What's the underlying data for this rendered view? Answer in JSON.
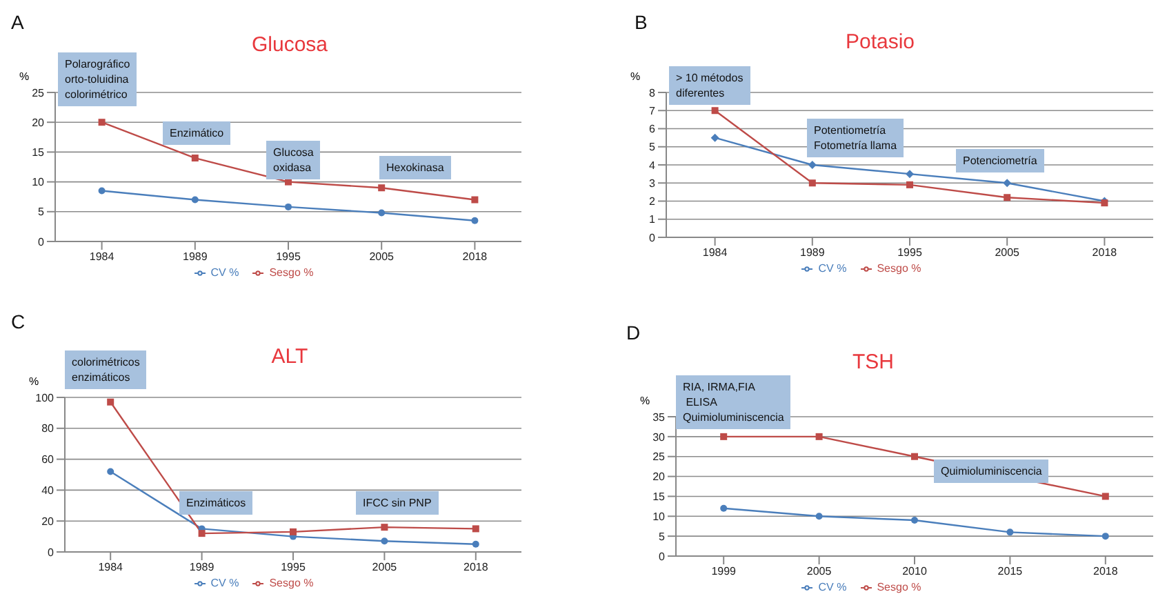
{
  "chart_data": [
    {
      "type": "line",
      "title": "Glucosa",
      "ylabel": "%",
      "categories": [
        "1984",
        "1989",
        "1995",
        "2005",
        "2018"
      ],
      "series": [
        {
          "name": "CV %",
          "color": "#4a7ebb",
          "marker": "circle",
          "values": [
            8.5,
            7,
            5.8,
            4.8,
            3.5
          ]
        },
        {
          "name": "Sesgo %",
          "color": "#be4b48",
          "marker": "square",
          "values": [
            20,
            14,
            10,
            9,
            7
          ]
        }
      ],
      "ylim": [
        0,
        25
      ],
      "yticks": [
        0,
        5,
        10,
        15,
        20,
        25
      ],
      "grid": "y",
      "legend": "bottom",
      "annotations": [
        "A",
        "Polarográfico\norto-toluidina\ncolorimétrico",
        "Enzimático",
        "Glucosa\noxidasa",
        "Hexokinasa"
      ]
    },
    {
      "type": "line",
      "title": "Potasio",
      "ylabel": "%",
      "categories": [
        "1984",
        "1989",
        "1995",
        "2005",
        "2018"
      ],
      "series": [
        {
          "name": "CV %",
          "color": "#4a7ebb",
          "marker": "diamond",
          "values": [
            5.5,
            4,
            3.5,
            3,
            2
          ]
        },
        {
          "name": "Sesgo %",
          "color": "#be4b48",
          "marker": "square",
          "values": [
            7,
            3,
            2.9,
            2.2,
            1.9
          ]
        }
      ],
      "ylim": [
        0,
        8
      ],
      "yticks": [
        0,
        1,
        2,
        3,
        4,
        5,
        6,
        7,
        8
      ],
      "grid": "y",
      "legend": "bottom",
      "annotations": [
        "B",
        "> 10 métodos\ndiferentes",
        "Potentiometría\nFotometría llama",
        "Potenciometría"
      ]
    },
    {
      "type": "line",
      "title": "ALT",
      "ylabel": "%",
      "categories": [
        "1984",
        "1989",
        "1995",
        "2005",
        "2018"
      ],
      "series": [
        {
          "name": "CV %",
          "color": "#4a7ebb",
          "marker": "circle",
          "values": [
            52,
            15,
            10,
            7,
            5
          ]
        },
        {
          "name": "Sesgo %",
          "color": "#be4b48",
          "marker": "square",
          "values": [
            97,
            12,
            13,
            16,
            15
          ]
        }
      ],
      "ylim": [
        0,
        100
      ],
      "yticks": [
        0,
        20,
        40,
        60,
        80,
        100
      ],
      "grid": "y",
      "legend": "bottom",
      "annotations": [
        "C",
        "colorimétricos\nenzimáticos",
        "Enzimáticos",
        "IFCC sin PNP"
      ]
    },
    {
      "type": "line",
      "title": "TSH",
      "ylabel": "%",
      "categories": [
        "1999",
        "2005",
        "2010",
        "2015",
        "2018"
      ],
      "series": [
        {
          "name": "CV %",
          "color": "#4a7ebb",
          "marker": "circle",
          "values": [
            12,
            10,
            9,
            6,
            5
          ]
        },
        {
          "name": "Sesgo %",
          "color": "#be4b48",
          "marker": "square",
          "values": [
            30,
            30,
            25,
            null,
            15
          ]
        }
      ],
      "ylim": [
        0,
        35
      ],
      "yticks": [
        0,
        5,
        10,
        15,
        20,
        25,
        30,
        35
      ],
      "grid": "y",
      "legend": "bottom",
      "annotations": [
        "D",
        "RIA, IRMA,FIA\n ELISA\nQuimioluminiscencia",
        "Quimioluminiscencia"
      ]
    }
  ]
}
